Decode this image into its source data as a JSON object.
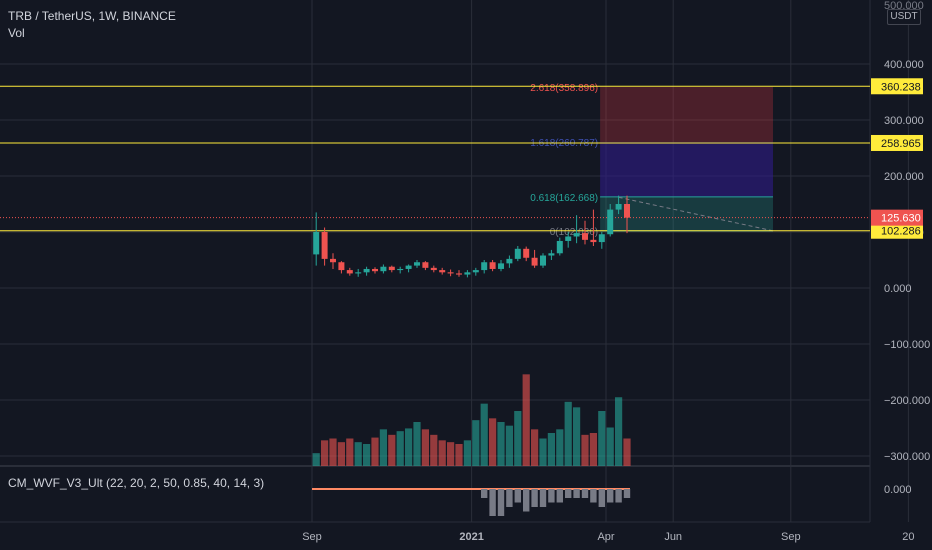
{
  "header": {
    "title": "TRB / TetherUS, 1W, BINANCE",
    "volume_label": "Vol",
    "currency_unit": "USDT",
    "indicator_label": "CM_WVF_V3_Ult (22, 20, 2, 50, 0.85, 40, 14, 3)"
  },
  "colors": {
    "background": "#131722",
    "up": "#26a69a",
    "down": "#ef5350",
    "fib_line": "#ffeb3b",
    "grid": "#2a2e39",
    "text": "#b2b5be"
  },
  "chart_data": [
    {
      "type": "candlestick",
      "x_axis": {
        "ticks": [
          "Sep",
          "2021",
          "Apr",
          "Jun",
          "Sep",
          "20"
        ],
        "tick_weeks": [
          0,
          19,
          35,
          43,
          57,
          71
        ]
      },
      "y_axis": {
        "ticks": [
          400,
          300,
          200,
          100,
          0,
          -100,
          -200,
          -300
        ],
        "tick_labels": [
          "400.000",
          "300.000",
          "200.000",
          "100.000",
          "0.000",
          "−100.000",
          "−200.000",
          "−300.000"
        ],
        "top_label": "500.000",
        "range": [
          -310,
          505
        ]
      },
      "last_price": 125.63,
      "last_price_label": "125.630",
      "horizontal_levels": [
        {
          "value": 360.238,
          "label": "360.238"
        },
        {
          "value": 258.965,
          "label": "258.965"
        },
        {
          "value": 102.286,
          "label": "102.286"
        }
      ],
      "fib_labels": [
        {
          "value": 358.896,
          "label": "2.618(358.896)"
        },
        {
          "value": 260.787,
          "label": "1.618(260.787)"
        },
        {
          "value": 162.668,
          "label": "0.618(162.668)"
        },
        {
          "value": 102.036,
          "label": "0(102.036)"
        }
      ],
      "candles": [
        {
          "o": 60,
          "h": 135,
          "l": 40,
          "c": 100
        },
        {
          "o": 100,
          "h": 108,
          "l": 40,
          "c": 52
        },
        {
          "o": 52,
          "h": 62,
          "l": 34,
          "c": 46
        },
        {
          "o": 46,
          "h": 48,
          "l": 26,
          "c": 32
        },
        {
          "o": 32,
          "h": 36,
          "l": 22,
          "c": 26
        },
        {
          "o": 26,
          "h": 34,
          "l": 20,
          "c": 28
        },
        {
          "o": 28,
          "h": 38,
          "l": 22,
          "c": 34
        },
        {
          "o": 34,
          "h": 37,
          "l": 26,
          "c": 30
        },
        {
          "o": 30,
          "h": 42,
          "l": 26,
          "c": 38
        },
        {
          "o": 38,
          "h": 40,
          "l": 28,
          "c": 32
        },
        {
          "o": 32,
          "h": 38,
          "l": 26,
          "c": 34
        },
        {
          "o": 34,
          "h": 42,
          "l": 28,
          "c": 40
        },
        {
          "o": 40,
          "h": 50,
          "l": 36,
          "c": 46
        },
        {
          "o": 46,
          "h": 48,
          "l": 32,
          "c": 36
        },
        {
          "o": 36,
          "h": 40,
          "l": 28,
          "c": 32
        },
        {
          "o": 32,
          "h": 36,
          "l": 24,
          "c": 28
        },
        {
          "o": 28,
          "h": 33,
          "l": 21,
          "c": 26
        },
        {
          "o": 26,
          "h": 32,
          "l": 20,
          "c": 24
        },
        {
          "o": 24,
          "h": 32,
          "l": 19,
          "c": 28
        },
        {
          "o": 28,
          "h": 36,
          "l": 22,
          "c": 32
        },
        {
          "o": 32,
          "h": 50,
          "l": 26,
          "c": 46
        },
        {
          "o": 46,
          "h": 50,
          "l": 30,
          "c": 34
        },
        {
          "o": 34,
          "h": 50,
          "l": 30,
          "c": 44
        },
        {
          "o": 44,
          "h": 58,
          "l": 36,
          "c": 52
        },
        {
          "o": 52,
          "h": 75,
          "l": 48,
          "c": 70
        },
        {
          "o": 70,
          "h": 74,
          "l": 48,
          "c": 54
        },
        {
          "o": 54,
          "h": 68,
          "l": 36,
          "c": 40
        },
        {
          "o": 40,
          "h": 62,
          "l": 36,
          "c": 58
        },
        {
          "o": 58,
          "h": 68,
          "l": 50,
          "c": 62
        },
        {
          "o": 62,
          "h": 90,
          "l": 58,
          "c": 84
        },
        {
          "o": 84,
          "h": 100,
          "l": 72,
          "c": 92
        },
        {
          "o": 92,
          "h": 130,
          "l": 80,
          "c": 98
        },
        {
          "o": 98,
          "h": 120,
          "l": 78,
          "c": 86
        },
        {
          "o": 86,
          "h": 140,
          "l": 75,
          "c": 82
        },
        {
          "o": 82,
          "h": 100,
          "l": 70,
          "c": 96
        },
        {
          "o": 96,
          "h": 150,
          "l": 92,
          "c": 140
        },
        {
          "o": 140,
          "h": 165,
          "l": 132,
          "c": 150
        },
        {
          "o": 150,
          "h": 165,
          "l": 98,
          "c": 125.63
        }
      ],
      "volume": [
        14,
        28,
        30,
        26,
        30,
        26,
        24,
        31,
        40,
        34,
        38,
        41,
        48,
        40,
        34,
        28,
        26,
        24,
        28,
        50,
        68,
        52,
        48,
        44,
        60,
        100,
        40,
        30,
        36,
        40,
        70,
        64,
        34,
        36,
        60,
        42,
        75,
        30
      ],
      "volume_scale_max": 120,
      "wvf_histogram": [
        0.2,
        0.6,
        0.6,
        0.4,
        0.3,
        0.5,
        0.4,
        0.4,
        0.3,
        0.3,
        0.2,
        0.2,
        0.2,
        0.3,
        0.4,
        0.3,
        0.3,
        0.2
      ],
      "wvf_axis_label": "0.000",
      "wvf_start_week": 20
    }
  ]
}
